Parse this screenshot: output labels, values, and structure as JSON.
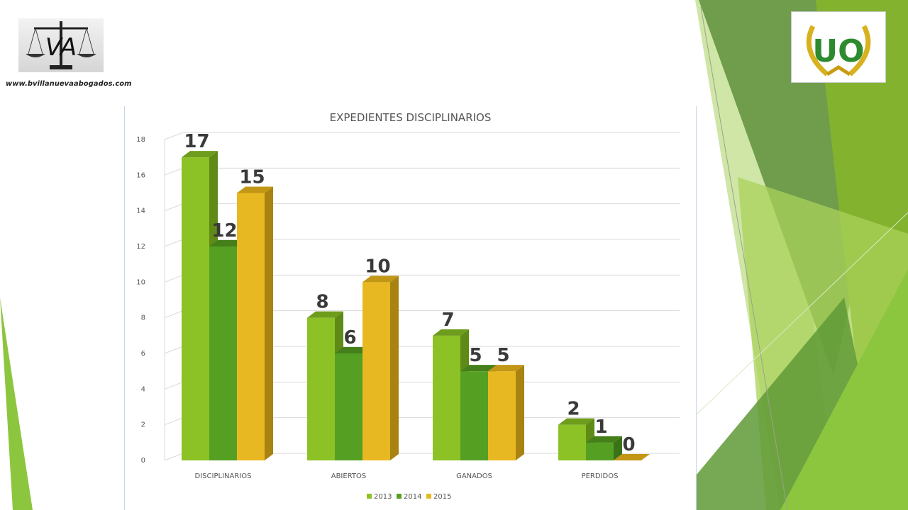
{
  "logo_left": {
    "site": "www.bvillanuevaabogados.com",
    "monogram": "VA"
  },
  "logo_right": {
    "monogram": "UO"
  },
  "colors": {
    "series": [
      "#8cc225",
      "#55a022",
      "#e8b823"
    ],
    "sides": [
      "#5f8a17",
      "#3a7217",
      "#a88312"
    ],
    "tops": [
      "#6e9c1c",
      "#447f1a",
      "#c29716"
    ]
  },
  "chart_data": {
    "type": "bar",
    "title": "EXPEDIENTES DISCIPLINARIOS",
    "categories": [
      "DISCIPLINARIOS",
      "ABIERTOS",
      "GANADOS",
      "PERDIDOS"
    ],
    "series": [
      {
        "name": "2013",
        "values": [
          17,
          8,
          7,
          2
        ]
      },
      {
        "name": "2014",
        "values": [
          12,
          6,
          5,
          1
        ]
      },
      {
        "name": "2015",
        "values": [
          15,
          10,
          5,
          0
        ]
      }
    ],
    "ylim": [
      0,
      18
    ],
    "yticks": [
      "0",
      "2",
      "4",
      "6",
      "8",
      "10",
      "12",
      "14",
      "16",
      "18"
    ],
    "grid": true,
    "legend": "bottom",
    "data_labels": true
  }
}
